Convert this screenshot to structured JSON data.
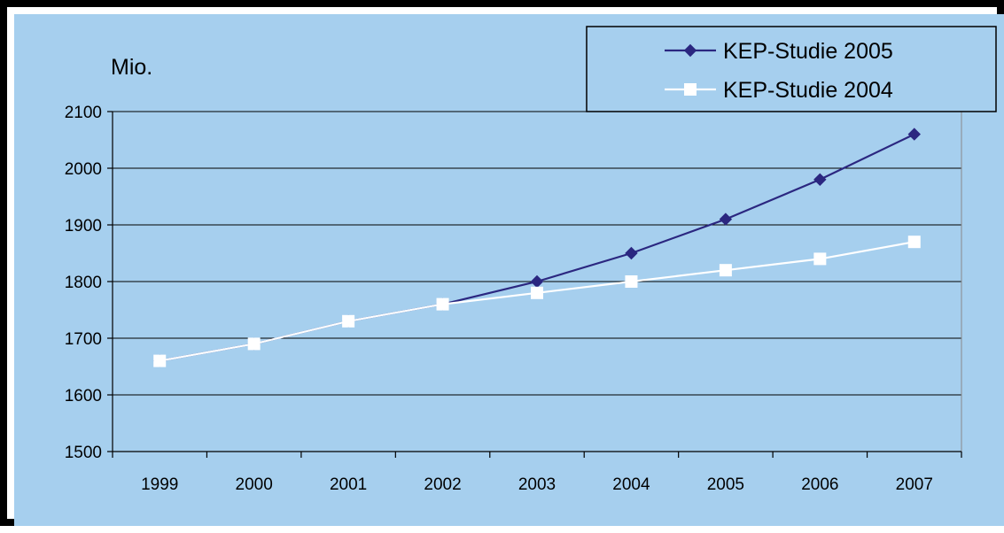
{
  "chart_data": {
    "type": "line",
    "title": "",
    "xlabel": "",
    "ylabel": "Mio.",
    "categories": [
      "1999",
      "2000",
      "2001",
      "2002",
      "2003",
      "2004",
      "2005",
      "2006",
      "2007"
    ],
    "ylim": [
      1500,
      2100
    ],
    "yticks": [
      1500,
      1600,
      1700,
      1800,
      1900,
      2000,
      2100
    ],
    "grid": "horizontal",
    "legend_position": "top-right",
    "background_color": "#a6cfee",
    "series": [
      {
        "name": "KEP-Studie 2005",
        "marker": "diamond",
        "color": "#2b2780",
        "values": [
          1660,
          1690,
          1730,
          1760,
          1800,
          1850,
          1910,
          1980,
          2060
        ]
      },
      {
        "name": "KEP-Studie 2004",
        "marker": "square",
        "color": "#ffffff",
        "values": [
          1660,
          1690,
          1730,
          1760,
          1780,
          1800,
          1820,
          1840,
          1870
        ]
      }
    ]
  }
}
